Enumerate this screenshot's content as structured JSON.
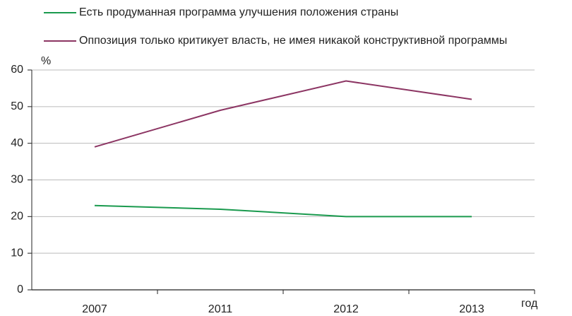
{
  "chart_data": {
    "type": "line",
    "y_label": "%",
    "x_label": "год",
    "categories": [
      "2007",
      "2011",
      "2012",
      "2013"
    ],
    "series": [
      {
        "name": "Есть продуманная программа улучшения положения страны",
        "color": "#1a9a4e",
        "values": [
          23,
          22,
          20,
          20
        ]
      },
      {
        "name": "Оппозиция только критикует власть, не имея никакой конструктивной программы",
        "color": "#8c3563",
        "values": [
          39,
          49,
          57,
          52
        ]
      }
    ],
    "ylim": [
      0,
      60
    ],
    "yticks": [
      0,
      10,
      20,
      30,
      40,
      50,
      60
    ],
    "grid": true
  }
}
